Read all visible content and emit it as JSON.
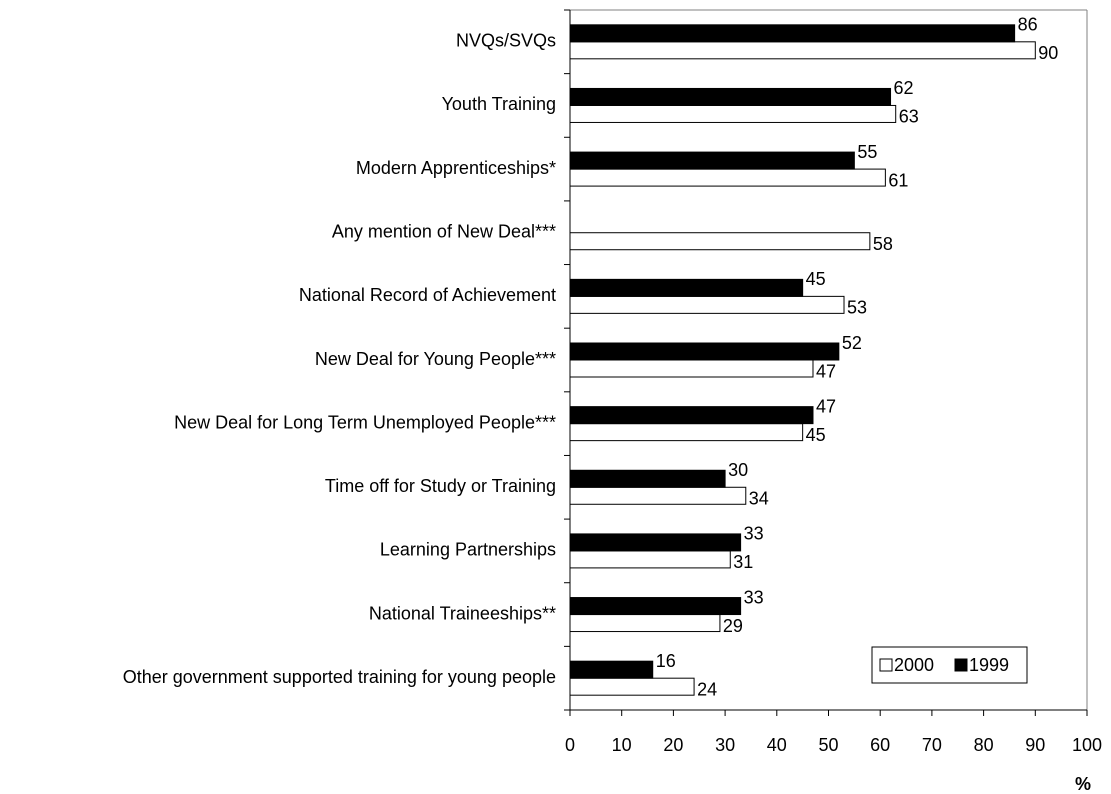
{
  "chart_data": {
    "type": "bar",
    "orientation": "horizontal",
    "x_label": "%",
    "categories": [
      "NVQs/SVQs",
      "Youth Training",
      "Modern Apprenticeships*",
      "Any mention of New Deal***",
      "National Record of Achievement",
      "New Deal for Young People***",
      "New Deal for Long Term Unemployed People***",
      "Time off for Study or Training",
      "Learning Partnerships",
      "National Traineeships**",
      "Other government supported training for young people"
    ],
    "series": [
      {
        "name": "2000",
        "color": "#ffffff",
        "values": [
          90,
          63,
          61,
          58,
          53,
          47,
          45,
          34,
          31,
          29,
          24
        ]
      },
      {
        "name": "1999",
        "color": "#000000",
        "values": [
          86,
          62,
          55,
          null,
          45,
          52,
          47,
          30,
          33,
          33,
          16
        ]
      }
    ],
    "xlim": [
      0,
      100
    ],
    "xticks": [
      0,
      10,
      20,
      30,
      40,
      50,
      60,
      70,
      80,
      90,
      100
    ],
    "legend": "lower right",
    "grid": false
  }
}
